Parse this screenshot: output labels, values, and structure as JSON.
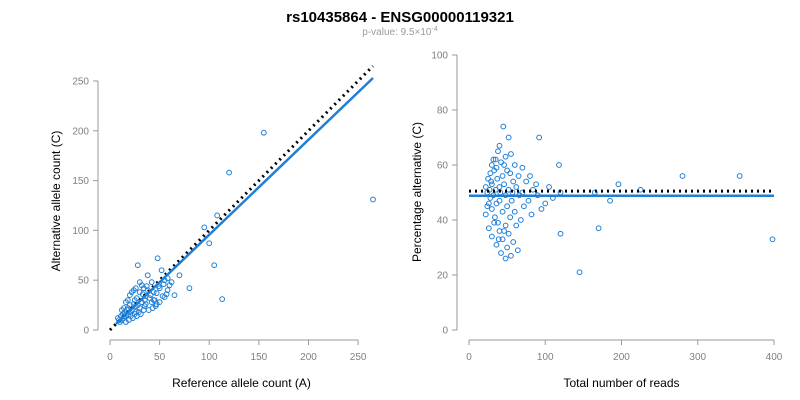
{
  "figure": {
    "title": "rs10435864 - ENSG00000119321",
    "subtitle_prefix": "p-value: 9.5×10",
    "subtitle_exponent": "-4"
  },
  "chart_data": [
    {
      "type": "scatter",
      "name": "allele-counts",
      "xlabel": "Reference allele count (A)",
      "ylabel": "Alternative allele count (C)",
      "xlim": [
        0,
        265
      ],
      "ylim": [
        0,
        258
      ],
      "xticks": [
        0,
        50,
        100,
        150,
        200,
        250
      ],
      "yticks": [
        0,
        50,
        100,
        150,
        200,
        250
      ],
      "grid": false,
      "colors": {
        "points": "#1f7fd6",
        "fit": "#1f7fd6",
        "expected": "#000000"
      },
      "expected_line": {
        "from": [
          0,
          0
        ],
        "to": [
          265,
          265
        ]
      },
      "fit_line": {
        "from": [
          6,
          6
        ],
        "to": [
          265,
          253
        ]
      },
      "points": [
        [
          155,
          198
        ],
        [
          120,
          158
        ],
        [
          265,
          131
        ],
        [
          108,
          115
        ],
        [
          95,
          103
        ],
        [
          100,
          87
        ],
        [
          113,
          31
        ],
        [
          105,
          65
        ],
        [
          80,
          42
        ],
        [
          70,
          55
        ],
        [
          62,
          48
        ],
        [
          58,
          40
        ],
        [
          55,
          33
        ],
        [
          50,
          42
        ],
        [
          47,
          37
        ],
        [
          45,
          30
        ],
        [
          42,
          28
        ],
        [
          65,
          35
        ],
        [
          52,
          60
        ],
        [
          48,
          72
        ],
        [
          38,
          55
        ],
        [
          35,
          30
        ],
        [
          32,
          45
        ],
        [
          30,
          38
        ],
        [
          28,
          25
        ],
        [
          25,
          30
        ],
        [
          22,
          20
        ],
        [
          20,
          25
        ],
        [
          18,
          15
        ],
        [
          15,
          18
        ],
        [
          12,
          10
        ],
        [
          10,
          8
        ],
        [
          8,
          12
        ],
        [
          14,
          22
        ],
        [
          16,
          28
        ],
        [
          20,
          35
        ],
        [
          24,
          40
        ],
        [
          26,
          18
        ],
        [
          30,
          22
        ],
        [
          34,
          20
        ],
        [
          36,
          26
        ],
        [
          40,
          32
        ],
        [
          44,
          38
        ],
        [
          46,
          24
        ],
        [
          50,
          28
        ],
        [
          55,
          50
        ],
        [
          60,
          45
        ],
        [
          28,
          65
        ],
        [
          38,
          40
        ],
        [
          42,
          48
        ],
        [
          18,
          30
        ],
        [
          22,
          38
        ],
        [
          26,
          42
        ],
        [
          30,
          48
        ],
        [
          33,
          36
        ],
        [
          37,
          44
        ],
        [
          12,
          20
        ],
        [
          14,
          12
        ],
        [
          16,
          8
        ],
        [
          19,
          10
        ],
        [
          21,
          14
        ],
        [
          23,
          12
        ],
        [
          25,
          16
        ],
        [
          27,
          14
        ],
        [
          29,
          18
        ],
        [
          31,
          16
        ],
        [
          35,
          24
        ],
        [
          39,
          20
        ],
        [
          43,
          22
        ],
        [
          47,
          26
        ],
        [
          53,
          34
        ],
        [
          57,
          36
        ],
        [
          11,
          14
        ],
        [
          13,
          16
        ],
        [
          17,
          20
        ],
        [
          24,
          26
        ],
        [
          32,
          28
        ],
        [
          41,
          35
        ],
        [
          49,
          44
        ],
        [
          54,
          46
        ],
        [
          20,
          18
        ],
        [
          27,
          32
        ],
        [
          34,
          42
        ],
        [
          44,
          30
        ],
        [
          58,
          52
        ],
        [
          9,
          10
        ],
        [
          15,
          14
        ],
        [
          18,
          22
        ],
        [
          26,
          24
        ],
        [
          36,
          34
        ]
      ]
    },
    {
      "type": "scatter",
      "name": "percentage-alternative",
      "xlabel": "Total number of reads",
      "ylabel": "Percentage alternative (C)",
      "xlim": [
        0,
        400
      ],
      "ylim": [
        0,
        100
      ],
      "xticks": [
        0,
        100,
        200,
        300,
        400
      ],
      "yticks": [
        0,
        20,
        40,
        60,
        80,
        100
      ],
      "grid": false,
      "colors": {
        "points": "#1f7fd6",
        "fit": "#1f7fd6",
        "expected": "#000000"
      },
      "expected_line": {
        "y": 50.5,
        "xlim": [
          0,
          400
        ]
      },
      "fit_line": {
        "y": 48.8,
        "xlim": [
          0,
          400
        ]
      },
      "points": [
        [
          45,
          74
        ],
        [
          52,
          70
        ],
        [
          92,
          70
        ],
        [
          40,
          67
        ],
        [
          38,
          65
        ],
        [
          55,
          64
        ],
        [
          48,
          63
        ],
        [
          35,
          62
        ],
        [
          42,
          61
        ],
        [
          60,
          60
        ],
        [
          30,
          60
        ],
        [
          118,
          60
        ],
        [
          70,
          59
        ],
        [
          33,
          58
        ],
        [
          50,
          58
        ],
        [
          28,
          57
        ],
        [
          44,
          56
        ],
        [
          65,
          56
        ],
        [
          80,
          56
        ],
        [
          280,
          56
        ],
        [
          355,
          56
        ],
        [
          25,
          55
        ],
        [
          37,
          55
        ],
        [
          58,
          54
        ],
        [
          75,
          54
        ],
        [
          30,
          53
        ],
        [
          46,
          53
        ],
        [
          88,
          53
        ],
        [
          196,
          53
        ],
        [
          22,
          52
        ],
        [
          40,
          52
        ],
        [
          62,
          52
        ],
        [
          105,
          52
        ],
        [
          225,
          51
        ],
        [
          27,
          51
        ],
        [
          35,
          51
        ],
        [
          52,
          51
        ],
        [
          70,
          50
        ],
        [
          120,
          50
        ],
        [
          165,
          50
        ],
        [
          24,
          50
        ],
        [
          32,
          49
        ],
        [
          48,
          49
        ],
        [
          66,
          49
        ],
        [
          90,
          49
        ],
        [
          110,
          48
        ],
        [
          28,
          48
        ],
        [
          40,
          47
        ],
        [
          56,
          47
        ],
        [
          78,
          47
        ],
        [
          100,
          46
        ],
        [
          185,
          47
        ],
        [
          26,
          46
        ],
        [
          36,
          46
        ],
        [
          50,
          45
        ],
        [
          72,
          45
        ],
        [
          95,
          44
        ],
        [
          30,
          44
        ],
        [
          44,
          43
        ],
        [
          60,
          43
        ],
        [
          82,
          42
        ],
        [
          22,
          42
        ],
        [
          34,
          41
        ],
        [
          54,
          41
        ],
        [
          68,
          40
        ],
        [
          38,
          39
        ],
        [
          48,
          38
        ],
        [
          62,
          38
        ],
        [
          26,
          37
        ],
        [
          40,
          36
        ],
        [
          52,
          35
        ],
        [
          170,
          37
        ],
        [
          120,
          35
        ],
        [
          30,
          34
        ],
        [
          44,
          33
        ],
        [
          58,
          32
        ],
        [
          36,
          31
        ],
        [
          50,
          30
        ],
        [
          64,
          29
        ],
        [
          42,
          28
        ],
        [
          55,
          27
        ],
        [
          48,
          26
        ],
        [
          145,
          21
        ],
        [
          398,
          33
        ],
        [
          32,
          62
        ],
        [
          36,
          59
        ],
        [
          46,
          60
        ],
        [
          54,
          57
        ],
        [
          29,
          54
        ],
        [
          41,
          50
        ],
        [
          57,
          50
        ],
        [
          84,
          51
        ],
        [
          24,
          45
        ],
        [
          33,
          39
        ],
        [
          46,
          36
        ],
        [
          39,
          33
        ]
      ]
    }
  ]
}
